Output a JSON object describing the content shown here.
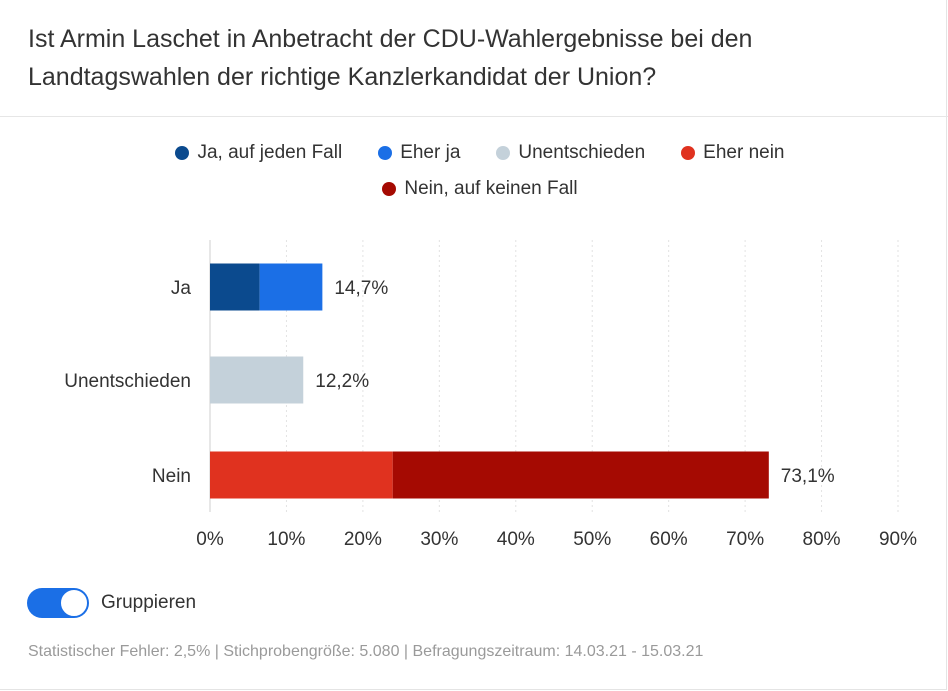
{
  "title": "Ist Armin Laschet in Anbetracht der CDU-Wahlergebnisse bei den Landtagswahlen der richtige Kanzlerkandidat der Union?",
  "legend": [
    {
      "label": "Ja, auf jeden Fall",
      "color": "#0b4a8e"
    },
    {
      "label": "Eher ja",
      "color": "#1b6fe6"
    },
    {
      "label": "Unentschieden",
      "color": "#c4d1da"
    },
    {
      "label": "Eher nein",
      "color": "#e0321f"
    },
    {
      "label": "Nein, auf keinen Fall",
      "color": "#a50a02"
    }
  ],
  "toggle": {
    "label": "Gruppieren",
    "on": true
  },
  "footer": "Statistischer Fehler: 2,5% | Stichprobengröße: 5.080 | Befragungszeitraum: 14.03.21 - 15.03.21",
  "chart_data": {
    "type": "bar",
    "orientation": "horizontal",
    "stacked": true,
    "categories": [
      "Ja",
      "Unentschieden",
      "Nein"
    ],
    "series": [
      {
        "name": "Ja, auf jeden Fall",
        "color": "#0b4a8e",
        "values": [
          6.5,
          0,
          0
        ]
      },
      {
        "name": "Eher ja",
        "color": "#1b6fe6",
        "values": [
          8.2,
          0,
          0
        ]
      },
      {
        "name": "Unentschieden",
        "color": "#c4d1da",
        "values": [
          0,
          12.2,
          0
        ]
      },
      {
        "name": "Eher nein",
        "color": "#e0321f",
        "values": [
          0,
          0,
          23.9
        ]
      },
      {
        "name": "Nein, auf keinen Fall",
        "color": "#a50a02",
        "values": [
          0,
          0,
          49.2
        ]
      }
    ],
    "totals": [
      14.7,
      12.2,
      73.1
    ],
    "total_labels": [
      "14,7%",
      "12,2%",
      "73,1%"
    ],
    "xlim": [
      0,
      90
    ],
    "xticks": [
      0,
      10,
      20,
      30,
      40,
      50,
      60,
      70,
      80,
      90
    ],
    "xtick_labels": [
      "0%",
      "10%",
      "20%",
      "30%",
      "40%",
      "50%",
      "60%",
      "70%",
      "80%",
      "90%"
    ],
    "grid": true,
    "legend_position": "top"
  }
}
